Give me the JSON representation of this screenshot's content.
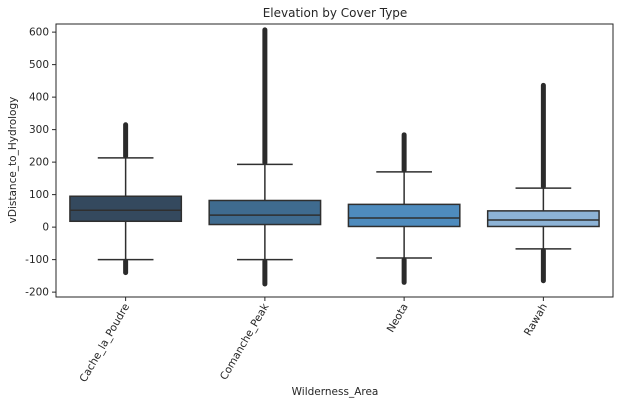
{
  "chart_data": {
    "type": "boxplot",
    "title": "Elevation by Cover Type",
    "xlabel": "Wilderness_Area",
    "ylabel": "vDistance_to_Hydrology",
    "ylim": [
      -215,
      625
    ],
    "yticks": [
      -200,
      -100,
      0,
      100,
      200,
      300,
      400,
      500,
      600
    ],
    "grid": false,
    "categories": [
      "Cache_la_Poudre",
      "Comanche_Peak",
      "Neota",
      "Rawah"
    ],
    "boxes": [
      {
        "name": "Cache_la_Poudre",
        "color": "#34495e",
        "whisker_low": -100,
        "q1": 18,
        "median": 52,
        "q3": 95,
        "whisker_high": 213,
        "outlier_low_range": [
          -140,
          -105
        ],
        "outlier_high_range": [
          218,
          315
        ]
      },
      {
        "name": "Comanche_Peak",
        "color": "#3f6b8f",
        "whisker_low": -100,
        "q1": 8,
        "median": 37,
        "q3": 82,
        "whisker_high": 193,
        "outlier_low_range": [
          -175,
          -105
        ],
        "outlier_high_range": [
          198,
          607
        ]
      },
      {
        "name": "Neota",
        "color": "#4e8bbd",
        "whisker_low": -95,
        "q1": 2,
        "median": 28,
        "q3": 70,
        "whisker_high": 170,
        "outlier_low_range": [
          -170,
          -100
        ],
        "outlier_high_range": [
          175,
          284
        ]
      },
      {
        "name": "Rawah",
        "color": "#8db3d6",
        "whisker_low": -67,
        "q1": 2,
        "median": 22,
        "q3": 50,
        "whisker_high": 120,
        "outlier_low_range": [
          -165,
          -72
        ],
        "outlier_high_range": [
          125,
          436
        ]
      }
    ]
  }
}
